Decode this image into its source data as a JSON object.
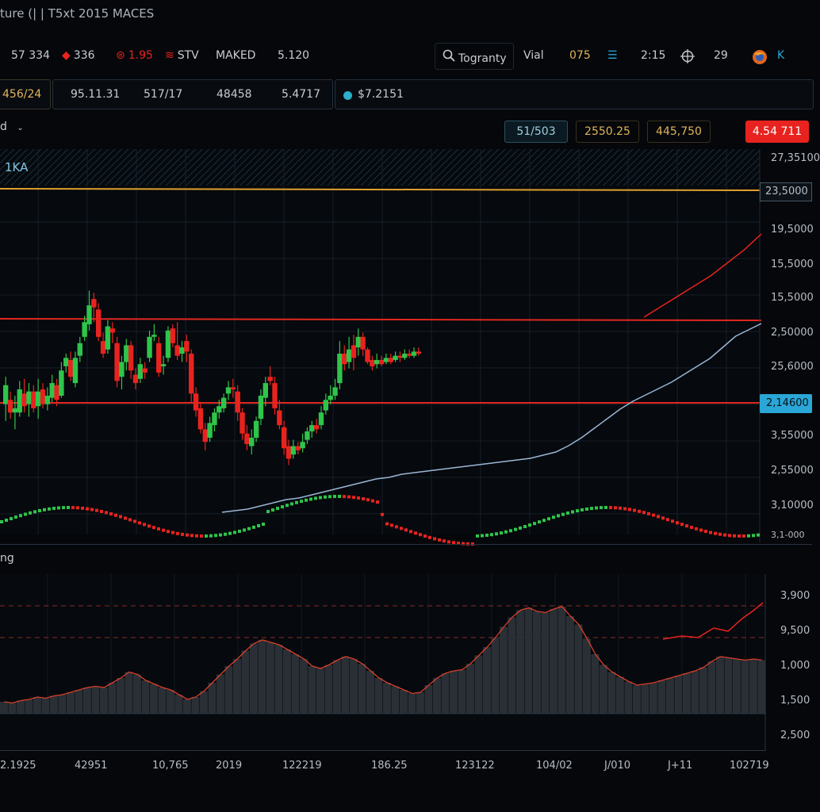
{
  "window": {
    "title": "ture (| | T5xt 2015 MACES"
  },
  "toolbar": {
    "items": [
      {
        "label": "57 334",
        "icon": ""
      },
      {
        "label": "336",
        "icon": "diamond-icon"
      },
      {
        "label": "1.95",
        "icon": "alert-circle-icon"
      },
      {
        "label": "STV",
        "icon": "wifi-icon"
      },
      {
        "label": "MAKED",
        "icon": ""
      },
      {
        "label": "5.120",
        "icon": ""
      }
    ],
    "search_label": "Togranty",
    "view_label": "Vial",
    "right_items": [
      {
        "label": "075",
        "icon": ""
      },
      {
        "label": "",
        "icon": "list-icon"
      },
      {
        "label": "2:15",
        "icon": ""
      },
      {
        "label": "",
        "icon": "crosshair-icon"
      },
      {
        "label": "29",
        "icon": ""
      },
      {
        "label": "",
        "icon": "browser-logo-icon"
      },
      {
        "label": "K",
        "icon": ""
      }
    ]
  },
  "tabs": {
    "active": "456/24",
    "group": [
      "95.11.31",
      "517/17",
      "48458",
      "5.4717"
    ],
    "ticker": "$7.2151",
    "ticker_dot_color": "#2ab0c8"
  },
  "panel_header": {
    "label": "d",
    "symbol": "1KA"
  },
  "chips": [
    {
      "label": "51/503",
      "color": "#9ecfe0"
    },
    {
      "label": "2550.25",
      "color": "#e2b45a"
    },
    {
      "label": "445,750",
      "color": "#e2b45a"
    },
    {
      "label": "4.54 711",
      "color": "#ffffff",
      "bg": "#e8231f"
    }
  ],
  "price_axis": {
    "labels": [
      "27,35100",
      "23,5000",
      "19,5000",
      "15,5000",
      "15,5000",
      "2,50000",
      "25,6000",
      "2,14600",
      "3,55000",
      "2,55000",
      "3,10000",
      "3,1-000"
    ],
    "highlight_label": "2,14600",
    "highlight_color": "#2aa7d6",
    "top_box_label": "23,5000"
  },
  "lower_panel": {
    "label": "ng",
    "axis_labels": [
      "3,900",
      "9,500",
      "1,000",
      "1,500",
      "2,500"
    ]
  },
  "x_axis": {
    "labels": [
      "2.1925",
      "42951",
      "10,765",
      "2019",
      "122219",
      "186.25",
      "123122",
      "104/02",
      "J/010",
      "J+11",
      "102719"
    ]
  },
  "colors": {
    "up": "#2ec54a",
    "down": "#e8231f",
    "ma": "#9bb6d6",
    "level": "#e02820",
    "gold": "#e0a030",
    "grid": "#16202b"
  },
  "chart_data": {
    "type": "candlestick",
    "candles": [
      [
        5.6,
        6.5,
        6.9,
        4.8
      ],
      [
        5.8,
        5.2,
        6.2,
        4.9
      ],
      [
        5.2,
        5.4,
        6.0,
        4.4
      ],
      [
        5.2,
        6.3,
        6.7,
        5.0
      ],
      [
        6.1,
        5.5,
        6.8,
        5.2
      ],
      [
        5.6,
        6.2,
        6.6,
        5.0
      ],
      [
        6.2,
        5.4,
        6.5,
        5.2
      ],
      [
        5.5,
        6.2,
        6.8,
        4.9
      ],
      [
        6.3,
        5.6,
        6.6,
        5.4
      ],
      [
        5.6,
        6.0,
        6.4,
        5.3
      ],
      [
        5.9,
        6.6,
        7.0,
        5.7
      ],
      [
        6.5,
        5.8,
        6.8,
        5.5
      ],
      [
        6.0,
        7.2,
        7.6,
        5.9
      ],
      [
        7.4,
        7.8,
        8.0,
        7.1
      ],
      [
        7.7,
        6.9,
        8.1,
        6.7
      ],
      [
        6.6,
        7.8,
        8.1,
        6.4
      ],
      [
        7.9,
        8.5,
        8.8,
        7.6
      ],
      [
        8.8,
        9.5,
        9.8,
        8.6
      ],
      [
        9.4,
        10.3,
        11.0,
        9.1
      ],
      [
        10.6,
        10.2,
        10.9,
        9.5
      ],
      [
        10.1,
        8.8,
        10.4,
        8.6
      ],
      [
        8.6,
        8.0,
        9.0,
        7.8
      ],
      [
        8.2,
        9.3,
        9.6,
        8.0
      ],
      [
        9.2,
        9.0,
        9.5,
        8.5
      ],
      [
        8.5,
        6.7,
        8.8,
        6.4
      ],
      [
        6.9,
        7.6,
        7.9,
        6.3
      ],
      [
        7.6,
        8.4,
        8.7,
        7.2
      ],
      [
        8.4,
        7.2,
        8.6,
        6.8
      ],
      [
        7.0,
        6.6,
        7.3,
        6.3
      ],
      [
        6.8,
        7.5,
        7.8,
        6.6
      ],
      [
        7.3,
        7.1,
        7.6,
        6.8
      ],
      [
        7.8,
        8.8,
        9.1,
        7.6
      ],
      [
        8.8,
        8.9,
        9.4,
        8.6
      ],
      [
        8.5,
        7.1,
        8.8,
        6.9
      ],
      [
        7.4,
        7.5,
        7.9,
        7.0
      ],
      [
        7.8,
        9.1,
        9.3,
        7.6
      ],
      [
        9.2,
        8.5,
        9.4,
        8.3
      ],
      [
        8.4,
        7.9,
        9.5,
        7.7
      ],
      [
        8.0,
        8.3,
        8.6,
        7.6
      ],
      [
        8.6,
        8.1,
        8.9,
        7.6
      ],
      [
        8.0,
        6.1,
        8.2,
        5.7
      ],
      [
        6.1,
        5.3,
        6.4,
        5.0
      ],
      [
        5.4,
        4.4,
        5.7,
        4.2
      ],
      [
        4.4,
        3.8,
        4.7,
        3.4
      ],
      [
        4.0,
        4.7,
        5.0,
        3.8
      ],
      [
        4.6,
        5.2,
        5.4,
        4.3
      ],
      [
        5.2,
        5.5,
        5.8,
        4.9
      ],
      [
        5.4,
        5.9,
        6.1,
        5.2
      ],
      [
        6.1,
        6.4,
        6.7,
        5.8
      ],
      [
        6.4,
        6.3,
        6.8,
        5.9
      ],
      [
        6.2,
        5.2,
        6.5,
        4.8
      ],
      [
        5.2,
        4.2,
        5.4,
        3.9
      ],
      [
        4.2,
        3.7,
        4.6,
        3.4
      ],
      [
        3.6,
        4.0,
        4.4,
        3.2
      ],
      [
        4.0,
        4.8,
        5.0,
        3.8
      ],
      [
        4.9,
        6.0,
        6.3,
        4.6
      ],
      [
        5.9,
        6.6,
        6.9,
        5.5
      ],
      [
        6.9,
        6.7,
        7.4,
        6.5
      ],
      [
        6.6,
        5.4,
        6.9,
        5.1
      ],
      [
        5.3,
        4.6,
        5.8,
        4.4
      ],
      [
        4.5,
        3.5,
        4.8,
        3.2
      ],
      [
        3.6,
        3.0,
        3.9,
        2.7
      ],
      [
        3.2,
        3.6,
        3.9,
        3.0
      ],
      [
        3.6,
        3.4,
        3.8,
        3.2
      ],
      [
        3.5,
        3.8,
        4.2,
        3.3
      ],
      [
        3.9,
        4.3,
        4.5,
        3.7
      ],
      [
        4.3,
        4.6,
        4.8,
        4.0
      ],
      [
        4.6,
        4.4,
        4.9,
        4.2
      ],
      [
        4.6,
        5.2,
        5.5,
        4.4
      ],
      [
        5.3,
        5.8,
        6.1,
        5.1
      ],
      [
        5.8,
        6.0,
        6.5,
        5.6
      ],
      [
        6.0,
        6.4,
        6.8,
        5.8
      ],
      [
        6.6,
        8.0,
        8.6,
        6.3
      ],
      [
        8.0,
        7.5,
        8.4,
        7.2
      ],
      [
        7.6,
        8.2,
        8.8,
        7.3
      ],
      [
        8.4,
        7.8,
        8.9,
        7.2
      ],
      [
        8.3,
        8.8,
        9.2,
        7.9
      ],
      [
        8.8,
        8.2,
        9.0,
        7.9
      ],
      [
        8.2,
        7.6,
        8.3,
        7.5
      ],
      [
        7.7,
        7.4,
        7.9,
        7.2
      ],
      [
        7.5,
        7.7,
        8.0,
        7.3
      ],
      [
        7.7,
        7.5,
        7.9,
        7.4
      ],
      [
        7.6,
        7.8,
        8.0,
        7.5
      ],
      [
        7.8,
        7.6,
        8.0,
        7.5
      ],
      [
        7.7,
        7.9,
        8.1,
        7.6
      ],
      [
        7.9,
        7.8,
        8.1,
        7.6
      ],
      [
        7.8,
        8.0,
        8.2,
        7.7
      ],
      [
        8.0,
        7.9,
        8.2,
        7.8
      ],
      [
        7.9,
        8.1,
        8.3,
        7.8
      ],
      [
        8.1,
        8.0,
        8.3,
        7.9
      ],
      [
        8.1,
        8.2,
        8.4,
        8.0
      ],
      [
        8.2,
        8.0,
        8.4,
        7.9
      ],
      [
        8.0,
        7.6,
        8.2,
        7.4
      ]
    ],
    "ma_line": [
      0.1,
      0.2,
      0.3,
      0.5,
      0.7,
      0.9,
      1.0,
      1.2,
      1.4,
      1.6,
      1.8,
      2.0,
      2.2,
      2.3,
      2.5,
      2.6,
      2.7,
      2.8,
      2.9,
      3.0,
      3.1,
      3.2,
      3.3,
      3.4,
      3.5,
      3.7,
      3.9,
      4.3,
      4.8,
      5.4,
      6.0,
      6.6,
      7.1,
      7.5,
      7.9,
      8.3,
      8.8,
      9.3,
      9.8,
      10.5,
      11.2,
      11.6,
      12.0
    ],
    "red_trend": [
      11.6,
      12.4,
      13.2,
      14.0,
      14.8,
      15.8,
      16.8,
      18.0
    ],
    "lower_wave": [
      [
        0,
        0
      ],
      [
        1,
        0
      ],
      [
        2,
        0
      ],
      [
        3,
        0
      ],
      [
        4,
        0
      ],
      [
        5,
        0
      ],
      [
        6,
        1
      ],
      [
        7,
        0
      ],
      [
        8,
        0
      ],
      [
        9,
        0
      ],
      [
        10,
        0
      ],
      [
        11,
        1
      ],
      [
        12,
        0
      ],
      [
        13,
        1
      ],
      [
        14,
        0
      ],
      [
        15,
        0
      ],
      [
        16,
        1
      ],
      [
        17,
        1
      ],
      [
        18,
        0
      ],
      [
        19,
        0
      ],
      [
        20,
        1
      ],
      [
        21,
        1
      ],
      [
        22,
        0
      ],
      [
        23,
        1
      ],
      [
        24,
        1
      ],
      [
        25,
        0
      ],
      [
        26,
        1
      ],
      [
        27,
        1
      ],
      [
        28,
        1
      ],
      [
        29,
        0
      ],
      [
        30,
        0
      ],
      [
        31,
        1
      ],
      [
        32,
        0
      ],
      [
        33,
        0
      ],
      [
        34,
        0
      ],
      [
        35,
        1
      ],
      [
        36,
        0
      ],
      [
        37,
        1
      ],
      [
        38,
        1
      ],
      [
        39,
        1
      ],
      [
        40,
        0
      ],
      [
        41,
        1
      ],
      [
        42,
        0
      ],
      [
        43,
        0
      ],
      [
        44,
        0
      ],
      [
        45,
        0
      ],
      [
        46,
        1
      ],
      [
        47,
        0
      ],
      [
        48,
        1
      ],
      [
        49,
        0
      ],
      [
        50,
        0
      ],
      [
        51,
        0
      ],
      [
        52,
        1
      ],
      [
        53,
        0
      ],
      [
        54,
        1
      ],
      [
        55,
        1
      ],
      [
        56,
        0
      ],
      [
        57,
        0
      ],
      [
        58,
        1
      ],
      [
        59,
        1
      ],
      [
        60,
        0
      ]
    ],
    "osc_profile": [
      1.0,
      0.9,
      1.1,
      1.2,
      1.4,
      1.3,
      1.5,
      1.6,
      1.8,
      2.0,
      2.2,
      2.3,
      2.2,
      2.6,
      3.0,
      3.5,
      3.3,
      2.8,
      2.5,
      2.2,
      2.0,
      1.6,
      1.2,
      1.4,
      1.9,
      2.6,
      3.3,
      4.0,
      4.6,
      5.3,
      5.9,
      6.2,
      6.0,
      5.8,
      5.4,
      5.0,
      4.6,
      4.0,
      3.8,
      4.1,
      4.5,
      4.8,
      4.6,
      4.2,
      3.6,
      3.0,
      2.6,
      2.3,
      2.0,
      1.7,
      1.8,
      2.4,
      3.0,
      3.4,
      3.6,
      3.7,
      4.2,
      4.9,
      5.6,
      6.4,
      7.3,
      8.1,
      8.7,
      8.9,
      8.6,
      8.5,
      8.8,
      9.0,
      8.2,
      7.5,
      6.3,
      5.0,
      4.1,
      3.5,
      3.1,
      2.7,
      2.4,
      2.5,
      2.6,
      2.8,
      3.0,
      3.2,
      3.4,
      3.6,
      3.9,
      4.4,
      4.8,
      4.7,
      4.6,
      4.5,
      4.6,
      4.5
    ]
  }
}
